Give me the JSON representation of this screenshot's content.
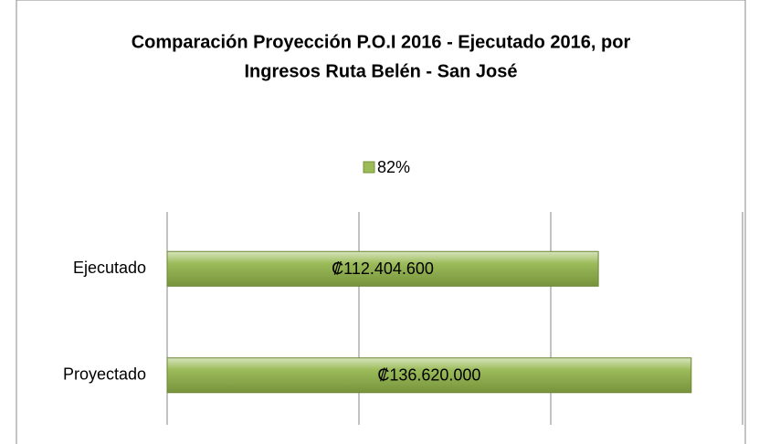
{
  "chart_data": {
    "type": "bar",
    "orientation": "horizontal",
    "title": [
      "Comparación Proyección P.O.I 2016 - Ejecutado 2016, por",
      "Ingresos Ruta Belén - San José"
    ],
    "categories": [
      "Ejecutado",
      "Proyectado"
    ],
    "series": [
      {
        "name": "82%",
        "color": "#9bbb59",
        "values": [
          112404600,
          136620000
        ],
        "value_labels": [
          "₡112.404.600",
          "₡136.620.000"
        ]
      }
    ],
    "xlim": [
      0,
      150000000
    ],
    "xticks": [
      0,
      50000000,
      100000000,
      150000000
    ],
    "grid": true,
    "legend": "top"
  }
}
